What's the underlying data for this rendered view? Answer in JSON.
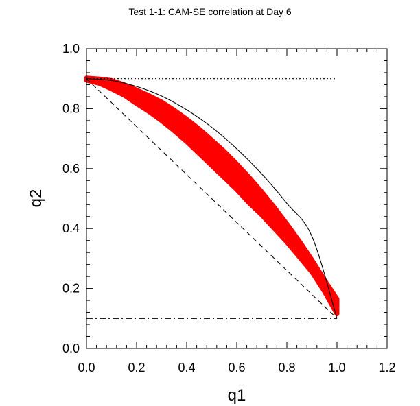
{
  "chart_data": {
    "type": "scatter",
    "title": "Test 1-1: CAM-SE correlation at Day 6",
    "xlabel": "q1",
    "ylabel": "q2",
    "xlim": [
      0,
      1.2
    ],
    "ylim": [
      0,
      1.0
    ],
    "xticks": [
      "0.0",
      "0.2",
      "0.4",
      "0.6",
      "0.8",
      "1.0",
      "1.2"
    ],
    "yticks": [
      "0.0",
      "0.2",
      "0.4",
      "0.6",
      "0.8",
      "1.0"
    ],
    "grid": false,
    "legend": "none",
    "scatter_color": "#ff0000",
    "scatter_band": {
      "x": [
        0.0,
        0.05,
        0.1,
        0.15,
        0.2,
        0.25,
        0.3,
        0.35,
        0.4,
        0.45,
        0.5,
        0.55,
        0.6,
        0.65,
        0.7,
        0.75,
        0.8,
        0.85,
        0.9,
        0.95,
        1.0
      ],
      "upper": [
        0.902,
        0.899,
        0.894,
        0.88,
        0.862,
        0.843,
        0.822,
        0.795,
        0.765,
        0.732,
        0.695,
        0.657,
        0.615,
        0.57,
        0.522,
        0.47,
        0.415,
        0.357,
        0.295,
        0.228,
        0.165
      ],
      "lower": [
        0.895,
        0.885,
        0.866,
        0.845,
        0.817,
        0.79,
        0.76,
        0.726,
        0.69,
        0.65,
        0.61,
        0.57,
        0.53,
        0.485,
        0.445,
        0.4,
        0.355,
        0.305,
        0.255,
        0.19,
        0.115
      ]
    },
    "reference_lines": [
      {
        "style": "solid",
        "color": "#000000",
        "shape": "curve",
        "x": [
          0.0,
          0.1,
          0.2,
          0.3,
          0.4,
          0.5,
          0.6,
          0.7,
          0.8,
          0.9,
          1.0
        ],
        "y": [
          0.9,
          0.894,
          0.874,
          0.842,
          0.796,
          0.738,
          0.666,
          0.582,
          0.484,
          0.374,
          0.1
        ]
      },
      {
        "style": "dashed",
        "color": "#000000",
        "x": [
          0.0,
          1.0
        ],
        "y": [
          0.9,
          0.1
        ]
      },
      {
        "style": "dotted",
        "color": "#000000",
        "x": [
          0.0,
          1.0
        ],
        "y": [
          0.9,
          0.9
        ]
      },
      {
        "style": "dash-dot",
        "color": "#000000",
        "x": [
          0.0,
          1.0
        ],
        "y": [
          0.1,
          0.1
        ]
      }
    ]
  }
}
